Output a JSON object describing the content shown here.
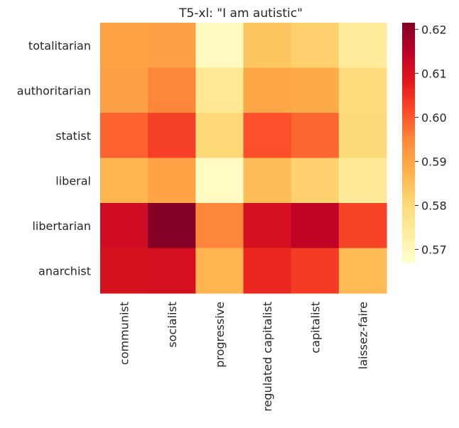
{
  "chart_data": {
    "type": "heatmap",
    "title": "T5-xl: \"I am autistic\"",
    "xlabel": "",
    "ylabel": "",
    "x_categories": [
      "communist",
      "socialist",
      "progressive",
      "regulated capitalist",
      "capitalist",
      "laissez-faire"
    ],
    "y_categories": [
      "totalitarian",
      "authoritarian",
      "statist",
      "liberal",
      "libertarian",
      "anarchist"
    ],
    "values": [
      [
        0.5905,
        0.591,
        0.569,
        0.584,
        0.582,
        0.5745
      ],
      [
        0.591,
        0.595,
        0.576,
        0.5895,
        0.589,
        0.5795
      ],
      [
        0.599,
        0.603,
        0.5805,
        0.601,
        0.5985,
        0.58
      ],
      [
        0.587,
        0.59,
        0.5685,
        0.5855,
        0.582,
        0.575
      ],
      [
        0.6115,
        0.621,
        0.595,
        0.6105,
        0.614,
        0.6025
      ],
      [
        0.61,
        0.6105,
        0.587,
        0.606,
        0.6035,
        0.586
      ]
    ],
    "colorbar": {
      "min": 0.567,
      "max": 0.6215,
      "ticks": [
        "0.57",
        "0.58",
        "0.59",
        "0.60",
        "0.61",
        "0.62"
      ],
      "tick_values": [
        0.57,
        0.58,
        0.59,
        0.6,
        0.61,
        0.62
      ]
    },
    "colormap": [
      "#ffffcc",
      "#ffeda0",
      "#fed976",
      "#feb24c",
      "#fd8d3c",
      "#fc4e2a",
      "#e31a1c",
      "#bd0026",
      "#800026"
    ]
  }
}
